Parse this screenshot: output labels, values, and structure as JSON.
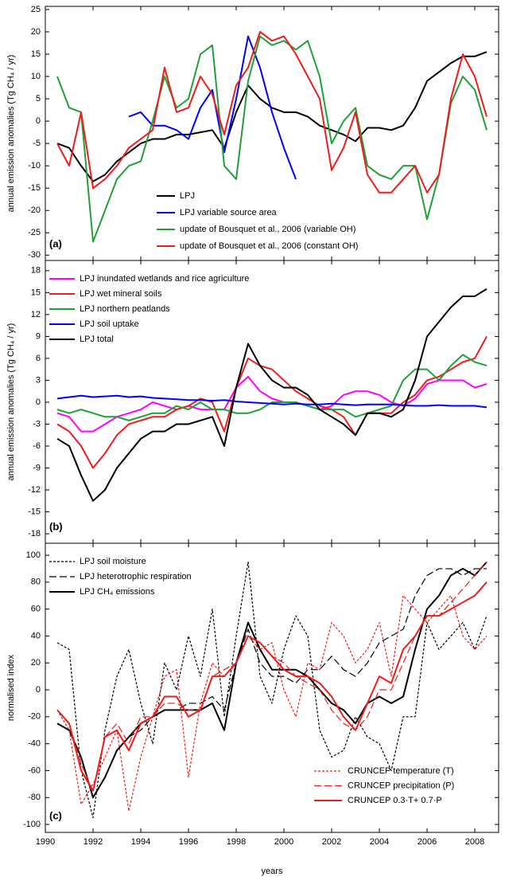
{
  "chart_data": [
    {
      "type": "line",
      "label": "(a)",
      "ylabel": "annual emission anomalies (Tg CH₄ / yr)",
      "xlim": [
        1990,
        2009
      ],
      "ylim": [
        -31.2,
        25.7
      ],
      "yticks": [
        25,
        20,
        15,
        10,
        5,
        0,
        -5,
        -10,
        -15,
        -20,
        -25,
        -30
      ],
      "x": [
        1990.5,
        1991,
        1991.5,
        1992,
        1992.5,
        1993,
        1993.5,
        1994,
        1994.5,
        1995,
        1995.5,
        1996,
        1996.5,
        1997,
        1997.5,
        1998,
        1998.5,
        1999,
        1999.5,
        2000,
        2000.5,
        2001,
        2001.5,
        2002,
        2002.5,
        2003,
        2003.5,
        2004,
        2004.5,
        2005,
        2005.5,
        2006,
        2006.5,
        2007,
        2007.5,
        2008,
        2008.5
      ],
      "series": [
        {
          "name": "LPJ",
          "color": "#000000",
          "dash": "solid",
          "legend": "lower-center",
          "values": [
            -5,
            -6,
            -10,
            -13.5,
            -12,
            -9,
            -7,
            -5,
            -4,
            -4,
            -3,
            -3,
            -2.5,
            -2,
            -6,
            2,
            8,
            5,
            3,
            2,
            2,
            1,
            -1,
            -2,
            -3,
            -4.5,
            -1.5,
            -1.5,
            -2,
            -1,
            3,
            9,
            11,
            13,
            14.5,
            14.5,
            15.5
          ]
        },
        {
          "name": "LPJ variable source area",
          "color": "#0000ff",
          "dash": "solid",
          "legend": "lower-center",
          "values": [
            null,
            null,
            null,
            null,
            null,
            null,
            1,
            2,
            -1,
            -1,
            -2,
            -4,
            3,
            7,
            -7,
            5,
            19,
            12,
            2,
            -6,
            -13,
            null,
            null,
            null,
            null,
            null,
            null,
            null,
            null,
            null,
            null,
            null,
            null,
            null,
            null,
            null,
            null
          ]
        },
        {
          "name": "update of Bousquet et al., 2006 (variable OH)",
          "color": "#21a03a",
          "dash": "solid",
          "legend": "lower-center",
          "values": [
            10,
            3,
            2,
            -27,
            -20,
            -13,
            -10,
            -9,
            0,
            10,
            3,
            5,
            15,
            17,
            -10,
            -13,
            9,
            19,
            17,
            18,
            16,
            18,
            10,
            -5,
            0,
            3,
            -10,
            -12,
            -13,
            -10,
            -10,
            -22,
            -12,
            4,
            10,
            7,
            -2
          ]
        },
        {
          "name": "update of Bousquet et al., 2006 (constant OH)",
          "color": "#ee1c1c",
          "dash": "solid",
          "legend": "lower-center",
          "values": [
            -5,
            -10,
            2,
            -15,
            -13,
            -10,
            -6,
            -4,
            -2,
            12,
            2,
            3,
            10,
            6,
            -3,
            8,
            12,
            20,
            18,
            19,
            15,
            10,
            5,
            -11,
            -6,
            2,
            -12,
            -16,
            -16,
            -13,
            -10,
            -16,
            -12,
            5,
            15,
            10,
            1
          ]
        }
      ]
    },
    {
      "type": "line",
      "label": "(b)",
      "ylabel": "annual emission anomalies (Tg CH₄ / yr)",
      "xlim": [
        1990,
        2009
      ],
      "ylim": [
        -19.3,
        19.4
      ],
      "yticks": [
        18,
        15,
        12,
        9,
        6,
        3,
        0,
        -3,
        -6,
        -9,
        -12,
        -15,
        -18
      ],
      "x": [
        1990.5,
        1991,
        1991.5,
        1992,
        1992.5,
        1993,
        1993.5,
        1994,
        1994.5,
        1995,
        1995.5,
        1996,
        1996.5,
        1997,
        1997.5,
        1998,
        1998.5,
        1999,
        1999.5,
        2000,
        2000.5,
        2001,
        2001.5,
        2002,
        2002.5,
        2003,
        2003.5,
        2004,
        2004.5,
        2005,
        2005.5,
        2006,
        2006.5,
        2007,
        2007.5,
        2008,
        2008.5
      ],
      "series": [
        {
          "name": "LPJ inundated wetlands and rice agriculture",
          "color": "#ff00ff",
          "dash": "solid",
          "legend": "upper-left",
          "values": [
            -1.5,
            -2,
            -4,
            -4,
            -3,
            -2,
            -1.5,
            -1,
            0,
            -0.5,
            -1,
            -0.5,
            -1,
            -1,
            -1,
            2,
            3.5,
            1.5,
            0.5,
            0,
            0,
            -0.5,
            -1,
            -0.5,
            1,
            1.5,
            1.5,
            1,
            0,
            -0.5,
            0.5,
            2.5,
            3,
            3,
            3,
            2,
            2.5
          ]
        },
        {
          "name": "LPJ wet mineral soils",
          "color": "#ee1c1c",
          "dash": "solid",
          "legend": "upper-left",
          "values": [
            -3,
            -4,
            -6,
            -9,
            -7,
            -4.5,
            -3,
            -2.5,
            -2,
            -2,
            -1,
            -0.5,
            0.5,
            0,
            -4,
            2,
            6,
            5,
            4.5,
            3,
            1.5,
            0.5,
            -0.5,
            -1,
            -2,
            -4.5,
            -1.5,
            -1.5,
            -1.5,
            0,
            1,
            3,
            3.5,
            4.5,
            5.5,
            6,
            9
          ]
        },
        {
          "name": "LPJ northern peatlands",
          "color": "#21a03a",
          "dash": "solid",
          "legend": "upper-left",
          "values": [
            -1,
            -1.5,
            -1,
            -1.5,
            -2,
            -2,
            -2.5,
            -2,
            -1.5,
            -1.5,
            -0.5,
            -1,
            0,
            -1,
            -1,
            -1.5,
            -1.5,
            -1,
            0,
            0,
            0,
            -0.5,
            -1,
            -1,
            -1,
            -2,
            -1.5,
            -1,
            -0.5,
            3,
            4.5,
            4.5,
            3,
            5,
            6.5,
            5.5,
            5
          ]
        },
        {
          "name": "LPJ soil uptake",
          "color": "#0000ff",
          "dash": "solid",
          "legend": "upper-left",
          "values": [
            0.5,
            0.7,
            0.9,
            0.7,
            0.8,
            0.9,
            0.7,
            0.8,
            0.6,
            0.5,
            0.4,
            0.3,
            0.3,
            0.2,
            0.3,
            0.1,
            0,
            -0.1,
            -0.2,
            -0.3,
            -0.2,
            -0.3,
            -0.3,
            -0.2,
            -0.3,
            -0.4,
            -0.3,
            -0.3,
            -0.3,
            -0.4,
            -0.5,
            -0.5,
            -0.4,
            -0.5,
            -0.5,
            -0.5,
            -0.7
          ]
        },
        {
          "name": "LPJ total",
          "color": "#000000",
          "dash": "solid",
          "legend": "upper-left",
          "values": [
            -5,
            -6,
            -10,
            -13.5,
            -12,
            -9,
            -7,
            -5,
            -4,
            -4,
            -3,
            -3,
            -2.5,
            -2,
            -6,
            2,
            8,
            5,
            3,
            2,
            2,
            1,
            -1,
            -2,
            -3,
            -4.5,
            -1.5,
            -1.5,
            -2,
            -1,
            3,
            9,
            11,
            13,
            14.5,
            14.5,
            15.5
          ]
        }
      ]
    },
    {
      "type": "line",
      "label": "(c)",
      "ylabel": "normalised index",
      "xlabel": "years",
      "xlim": [
        1990,
        2009
      ],
      "ylim": [
        -105.9,
        108.9
      ],
      "xticks": [
        1990,
        1992,
        1994,
        1996,
        1998,
        2000,
        2002,
        2004,
        2006,
        2008
      ],
      "yticks": [
        100,
        80,
        60,
        40,
        20,
        0,
        -20,
        -40,
        -60,
        -80,
        -100
      ],
      "x": [
        1990.5,
        1991,
        1991.5,
        1992,
        1992.5,
        1993,
        1993.5,
        1994,
        1994.5,
        1995,
        1995.5,
        1996,
        1996.5,
        1997,
        1997.5,
        1998,
        1998.5,
        1999,
        1999.5,
        2000,
        2000.5,
        2001,
        2001.5,
        2002,
        2002.5,
        2003,
        2003.5,
        2004,
        2004.5,
        2005,
        2005.5,
        2006,
        2006.5,
        2007,
        2007.5,
        2008,
        2008.5
      ],
      "series": [
        {
          "name": "LPJ soil moisture",
          "color": "#000000",
          "dash": "short",
          "legend": "upper-left",
          "values": [
            35,
            30,
            -60,
            -95,
            -30,
            10,
            30,
            -10,
            -40,
            20,
            0,
            40,
            10,
            60,
            -20,
            40,
            95,
            10,
            -10,
            30,
            55,
            40,
            -30,
            -50,
            -45,
            -20,
            -35,
            -40,
            -60,
            -20,
            -20,
            50,
            30,
            40,
            50,
            30,
            55
          ]
        },
        {
          "name": "LPJ heterotrophic respiration",
          "color": "#000000",
          "dash": "long",
          "legend": "upper-left",
          "values": [
            -25,
            -30,
            -50,
            -80,
            -65,
            -45,
            -35,
            -30,
            -20,
            -15,
            -15,
            -10,
            -10,
            -5,
            -15,
            20,
            45,
            20,
            10,
            10,
            5,
            15,
            15,
            25,
            15,
            10,
            20,
            35,
            40,
            45,
            70,
            85,
            90,
            90,
            85,
            90,
            90
          ]
        },
        {
          "name": "LPJ CH₄ emissions",
          "color": "#000000",
          "dash": "solid",
          "legend": "upper-left",
          "values": [
            -25,
            -30,
            -50,
            -80,
            -65,
            -45,
            -35,
            -25,
            -20,
            -15,
            -15,
            -15,
            -15,
            -10,
            -30,
            20,
            50,
            30,
            15,
            15,
            15,
            10,
            0,
            -10,
            -15,
            -25,
            -10,
            -5,
            -10,
            -5,
            30,
            60,
            70,
            85,
            90,
            85,
            95
          ]
        },
        {
          "name": "CRUNCEP temperature (T)",
          "color": "#ee1c1c",
          "dash": "short",
          "legend": "lower-right",
          "values": [
            -15,
            -30,
            -85,
            -70,
            -50,
            -30,
            -90,
            -50,
            -20,
            10,
            15,
            -65,
            -10,
            20,
            10,
            20,
            40,
            30,
            35,
            0,
            -20,
            20,
            15,
            50,
            40,
            20,
            30,
            50,
            10,
            70,
            60,
            50,
            60,
            70,
            40,
            30,
            40
          ]
        },
        {
          "name": "CRUNCEP precipitation (P)",
          "color": "#ee1c1c",
          "dash": "long",
          "legend": "lower-right",
          "values": [
            -15,
            -25,
            -55,
            -75,
            -35,
            -25,
            -40,
            -20,
            -20,
            -10,
            -10,
            -15,
            -15,
            10,
            15,
            20,
            40,
            35,
            25,
            20,
            10,
            5,
            0,
            -15,
            -25,
            -30,
            -20,
            0,
            0,
            20,
            40,
            55,
            55,
            65,
            75,
            85,
            95
          ]
        },
        {
          "name": "CRUNCEP 0.3·T+ 0.7·P",
          "color": "#ee1c1c",
          "dash": "solid",
          "legend": "lower-right",
          "values": [
            -15,
            -25,
            -60,
            -75,
            -35,
            -30,
            -45,
            -25,
            -20,
            -5,
            -5,
            -20,
            -15,
            10,
            10,
            20,
            40,
            35,
            25,
            15,
            10,
            10,
            5,
            -5,
            -20,
            -30,
            -10,
            10,
            5,
            30,
            40,
            55,
            55,
            60,
            65,
            70,
            80
          ]
        }
      ]
    }
  ]
}
